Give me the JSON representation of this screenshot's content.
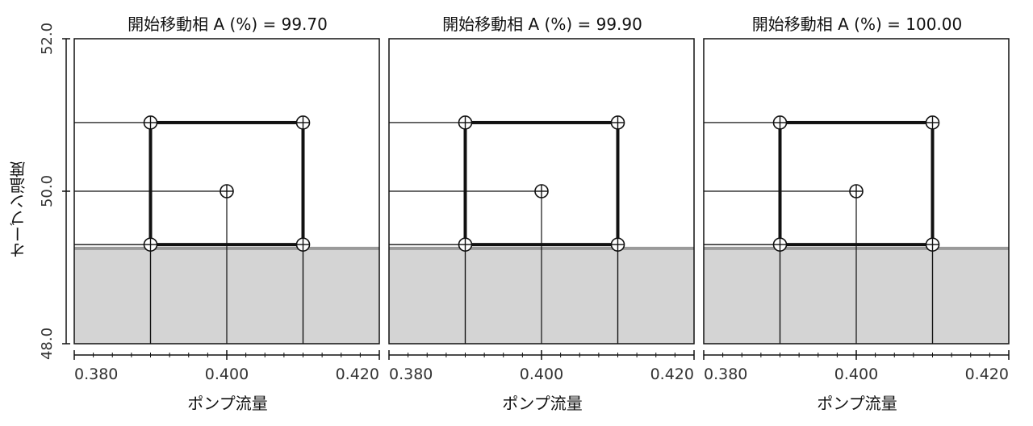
{
  "chart_data": {
    "type": "scatter",
    "ylabel": "オーブン温度",
    "xlabel": "ポンプ流量",
    "x_ticks": [
      "0.380",
      "0.400",
      "0.420"
    ],
    "y_ticks": [
      "48.0",
      "50.0",
      "52.0"
    ],
    "xlim": [
      0.38,
      0.42
    ],
    "ylim": [
      48.0,
      52.0
    ],
    "shaded_region": {
      "y_from": 48.0,
      "y_to": 49.25
    },
    "rectangle": {
      "x0": 0.39,
      "x1": 0.41,
      "y0": 49.3,
      "y1": 50.9
    },
    "points": [
      {
        "x": 0.39,
        "y": 50.9
      },
      {
        "x": 0.41,
        "y": 50.9
      },
      {
        "x": 0.4,
        "y": 50.0
      },
      {
        "x": 0.39,
        "y": 49.3
      },
      {
        "x": 0.41,
        "y": 49.3
      }
    ],
    "panels": [
      {
        "title": "開始移動相 A (%) = 99.70"
      },
      {
        "title": "開始移動相 A (%) = 99.90"
      },
      {
        "title": "開始移動相 A (%) = 100.00"
      }
    ],
    "colors": {
      "shade": "#d4d4d4",
      "shade_edge": "#9a9a9a",
      "frame": "#111111"
    }
  }
}
